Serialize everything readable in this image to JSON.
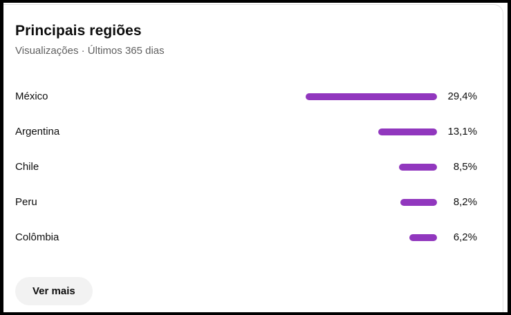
{
  "card": {
    "title": "Principais regiões",
    "subtitle": "Visualizações · Últimos 365 dias",
    "see_more_label": "Ver mais"
  },
  "colors": {
    "bar": "#9137be",
    "title_text": "#0d0d0d",
    "subtitle_text": "#606060",
    "button_bg": "#f2f2f2",
    "card_border": "#e0e0e0",
    "frame": "#000000"
  },
  "chart_data": {
    "type": "bar",
    "orientation": "horizontal",
    "title": "Principais regiões",
    "subtitle": "Visualizações · Últimos 365 dias",
    "metric": "Visualizações",
    "period": "Últimos 365 dias",
    "categories": [
      "México",
      "Argentina",
      "Chile",
      "Peru",
      "Colômbia"
    ],
    "values": [
      29.4,
      13.1,
      8.5,
      8.2,
      6.2
    ],
    "value_labels": [
      "29,4%",
      "13,1%",
      "8,5%",
      "8,2%",
      "6,2%"
    ],
    "unit": "%",
    "xlim": [
      0,
      29.4
    ],
    "bars_right_aligned": true,
    "grid": false,
    "legend": false
  }
}
